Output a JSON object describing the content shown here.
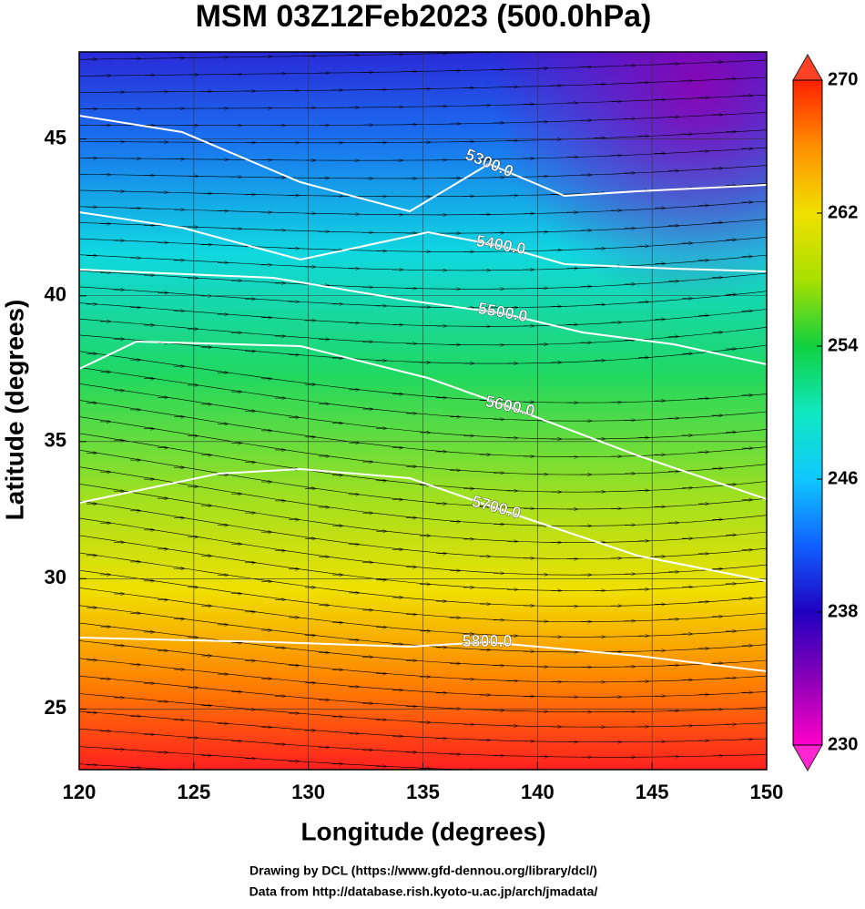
{
  "title": "MSM 03Z12Feb2023 (500.0hPa)",
  "map": {
    "xlabel": "Longitude (degrees)",
    "ylabel": "Latitude  (degrees)",
    "xlim": [
      120,
      150
    ],
    "ylim": [
      22.6,
      47.6
    ],
    "xticks": [
      120,
      125,
      130,
      135,
      140,
      145,
      150
    ],
    "yticks": [
      25,
      30,
      35,
      40,
      45
    ]
  },
  "colorbar": {
    "lim": [
      230,
      270
    ],
    "ticks": [
      230,
      238,
      246,
      254,
      262,
      270
    ],
    "colors": [
      "#ff00c8",
      "#8a00b8",
      "#2000c0",
      "#1060ff",
      "#10c8ff",
      "#10e8c0",
      "#10d040",
      "#a8e000",
      "#f0e000",
      "#ff9000",
      "#ff2000"
    ]
  },
  "contours": [
    {
      "value": 5300,
      "label": "5300.0"
    },
    {
      "value": 5400,
      "label": "5400.0"
    },
    {
      "value": 5500,
      "label": "5500.0"
    },
    {
      "value": 5600,
      "label": "5600.0"
    },
    {
      "value": 5700,
      "label": "5700.0"
    },
    {
      "value": 5800,
      "label": "5800.0"
    }
  ],
  "credits": [
    "Drawing by DCL (https://www.gfd-dennou.org/library/dcl/)",
    "Data from http://database.rish.kyoto-u.ac.jp/arch/jmadata/"
  ]
}
